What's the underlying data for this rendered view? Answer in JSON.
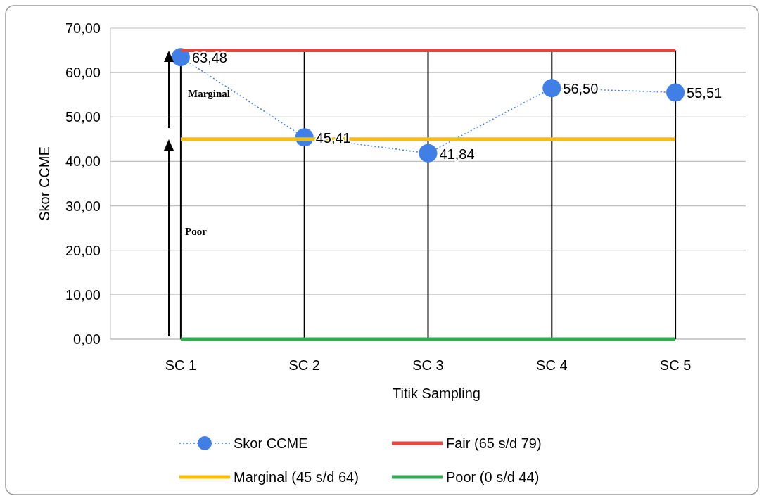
{
  "chart_data": {
    "type": "line",
    "xlabel": "Titik Sampling",
    "ylabel": "Skor CCME",
    "categories": [
      "SC 1",
      "SC 2",
      "SC 3",
      "SC 4",
      "SC 5"
    ],
    "series": [
      {
        "name": "Skor CCME",
        "color": "#3f7fe6",
        "values": [
          63.48,
          45.41,
          41.84,
          56.5,
          55.51
        ],
        "value_labels": [
          "63,48",
          "45,41",
          "41,84",
          "56,50",
          "55,51"
        ],
        "marker": "circle",
        "line_style": "dotted"
      },
      {
        "name": "Fair (65 s/d 79)",
        "color": "#e8453c",
        "values": [
          65,
          65,
          65,
          65,
          65
        ],
        "marker": "none",
        "line_style": "solid"
      },
      {
        "name": "Marginal (45 s/d 64)",
        "color": "#fbbc04",
        "values": [
          45,
          45,
          45,
          45,
          45
        ],
        "marker": "none",
        "line_style": "solid"
      },
      {
        "name": "Poor (0 s/d 44)",
        "color": "#34a853",
        "values": [
          0,
          0,
          0,
          0,
          0
        ],
        "marker": "none",
        "line_style": "solid"
      }
    ],
    "ylim": [
      0,
      70
    ],
    "yticks": [
      {
        "value": 0,
        "label": "0,00"
      },
      {
        "value": 10,
        "label": "10,00"
      },
      {
        "value": 20,
        "label": "20,00"
      },
      {
        "value": 30,
        "label": "30,00"
      },
      {
        "value": 40,
        "label": "40,00"
      },
      {
        "value": 50,
        "label": "50,00"
      },
      {
        "value": 60,
        "label": "60,00"
      },
      {
        "value": 70,
        "label": "70,00"
      }
    ],
    "annotations": [
      "Marginal",
      "Poor"
    ],
    "grid": true,
    "legend": "bottom"
  }
}
